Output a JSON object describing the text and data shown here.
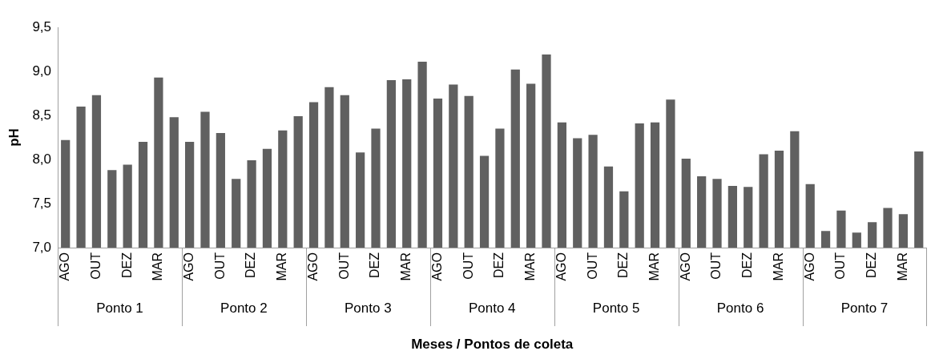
{
  "chart_data": {
    "type": "bar",
    "xlabel": "Meses / Pontos de coleta",
    "ylabel": "pH",
    "categories": [
      "AGO",
      null,
      "OUT",
      null,
      "DEZ",
      null,
      "MAR",
      null,
      "AGO",
      null,
      "OUT",
      null,
      "DEZ",
      null,
      "MAR",
      null,
      "AGO",
      null,
      "OUT",
      null,
      "DEZ",
      null,
      "MAR",
      null,
      "AGO",
      null,
      "OUT",
      null,
      "DEZ",
      null,
      "MAR",
      null,
      "AGO",
      null,
      "OUT",
      null,
      "DEZ",
      null,
      "MAR",
      null,
      "AGO",
      null,
      "OUT",
      null,
      "DEZ",
      null,
      "MAR",
      null,
      "AGO",
      null,
      "OUT",
      null,
      "DEZ",
      null,
      "MAR",
      null
    ],
    "annotations": [
      "Ponto 1",
      "Ponto 2",
      "Ponto 3",
      "Ponto 4",
      "Ponto 5",
      "Ponto 6",
      "Ponto 7"
    ],
    "series": [
      {
        "color": "#606060",
        "values": [
          8.22,
          8.6,
          8.73,
          7.88,
          7.94,
          8.2,
          8.93,
          8.48,
          8.2,
          8.54,
          8.3,
          7.78,
          7.99,
          8.12,
          8.33,
          8.49,
          8.65,
          8.82,
          8.73,
          8.08,
          8.35,
          8.9,
          8.91,
          9.11,
          8.69,
          8.85,
          8.72,
          8.04,
          8.35,
          9.02,
          8.86,
          9.19,
          8.42,
          8.24,
          8.28,
          7.92,
          7.64,
          8.41,
          8.42,
          8.68,
          8.01,
          7.81,
          7.78,
          7.7,
          7.69,
          8.06,
          8.1,
          8.32,
          7.72,
          7.19,
          7.42,
          7.17,
          7.29,
          7.45,
          7.38,
          8.09
        ]
      }
    ],
    "ylim": [
      7,
      9.5
    ],
    "yticks": [
      {
        "value": 7,
        "label": "7,0"
      },
      {
        "value": 7.5,
        "label": "7,5"
      },
      {
        "value": 8,
        "label": "8,0"
      },
      {
        "value": 8.5,
        "label": "8,5"
      },
      {
        "value": 9,
        "label": "9,0"
      },
      {
        "value": 9.5,
        "label": "9,5"
      }
    ],
    "grid": false,
    "legend": false
  }
}
